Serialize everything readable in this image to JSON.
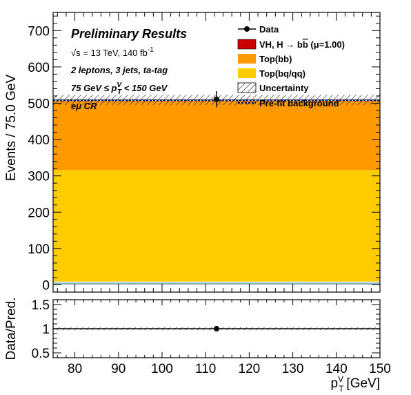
{
  "chart_data": [
    {
      "type": "bar",
      "panel": "main",
      "bins": [
        [
          75,
          150
        ]
      ],
      "stack": [
        {
          "name": "Top(bq/qq)",
          "values": [
            307
          ],
          "color": "#ffcc00"
        },
        {
          "name": "Top(bb)",
          "values": [
            190
          ],
          "color": "#ff9900"
        },
        {
          "name": "VH, H → bb̅ (μ=1.00)",
          "values": [
            0.5
          ],
          "color": "#cc0000"
        }
      ],
      "thin_bands": [
        {
          "values": [
            2
          ],
          "color": "#aaccee"
        },
        {
          "values": [
            2
          ],
          "color": "#669966"
        },
        {
          "values": [
            3
          ],
          "color": "#99ccff"
        },
        {
          "values": [
            2
          ],
          "color": "#eeeeee"
        }
      ],
      "data": {
        "name": "Data",
        "x": [
          112.5
        ],
        "y": [
          511
        ],
        "yerr": [
          22
        ]
      },
      "total_prediction": [
        509
      ],
      "uncertainty": {
        "name": "Uncertainty",
        "lo": [
          495
        ],
        "hi": [
          523
        ]
      },
      "prefit": {
        "name": "Pre-fit background",
        "values": [
          508
        ]
      },
      "xlim": [
        75,
        150
      ],
      "ylim": [
        -20,
        750
      ],
      "yticks": [
        0,
        100,
        200,
        300,
        400,
        500,
        600,
        700
      ],
      "ylabel": "Events / 75.0 GeV",
      "legend_position": "top-right"
    },
    {
      "type": "scatter",
      "panel": "ratio",
      "x": [
        112.5
      ],
      "y": [
        1.0
      ],
      "yerr": [
        0.04
      ],
      "reference_line": 1,
      "xlim": [
        75,
        150
      ],
      "ylim": [
        0.4,
        1.6
      ],
      "xticks": [
        80,
        90,
        100,
        110,
        120,
        130,
        140,
        150
      ],
      "yticks": [
        0.5,
        1,
        1.5
      ],
      "ylabel": "Data/Pred.",
      "xlabel_main": "p",
      "xlabel_sup": "V",
      "xlabel_sub": "T",
      "xlabel_unit": "[GeV]"
    }
  ],
  "annotations": {
    "title": "Preliminary Results",
    "energy_sqrt": "√s = 13 TeV, 140 fb",
    "energy_exp": "-1",
    "selection": "2 leptons, 3 jets, ta-tag",
    "ptrange_a": "75 GeV  ≤ p",
    "ptrange_sup": "V",
    "ptrange_sub": "T",
    "ptrange_b": " < 150 GeV",
    "region": "eμ CR"
  },
  "legend": [
    {
      "label": "Data",
      "kind": "marker"
    },
    {
      "label": "VH, H  → b",
      "label_bar": "b",
      "label_tail": " (μ=1.00)",
      "kind": "fill",
      "color": "#cc0000"
    },
    {
      "label": "Top(bb)",
      "kind": "fill",
      "color": "#ff9900"
    },
    {
      "label": "Top(bq/qq)",
      "kind": "fill",
      "color": "#ffcc00"
    },
    {
      "label": "Uncertainty",
      "kind": "hatch"
    },
    {
      "label": "Pre-fit background",
      "kind": "dashed"
    }
  ]
}
